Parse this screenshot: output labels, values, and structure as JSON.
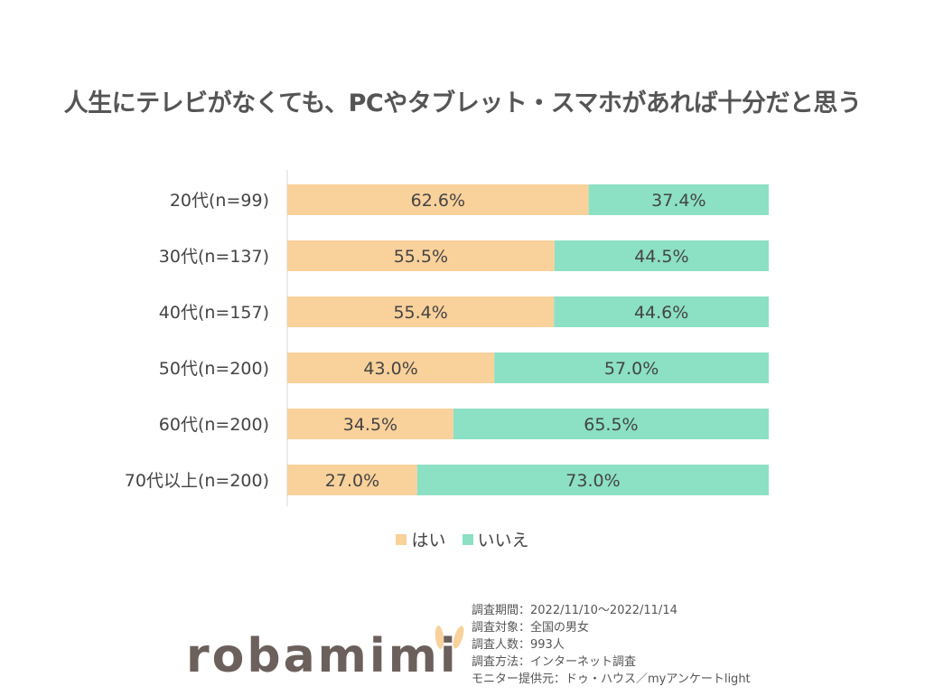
{
  "chart_data": {
    "type": "bar",
    "stacked": true,
    "orientation": "horizontal",
    "title": "人生にテレビがなくても、PCやタブレット・スマホがあれば十分だと思う",
    "categories": [
      "20代(n=99)",
      "30代(n=137)",
      "40代(n=157)",
      "50代(n=200)",
      "60代(n=200)",
      "70代以上(n=200)"
    ],
    "series": [
      {
        "name": "はい",
        "color": "#f9d19b",
        "values": [
          62.6,
          55.5,
          55.4,
          43.0,
          34.5,
          27.0
        ]
      },
      {
        "name": "いいえ",
        "color": "#8ce0c3",
        "values": [
          37.4,
          44.5,
          44.6,
          57.0,
          65.5,
          73.0
        ]
      }
    ],
    "xlim": [
      0,
      100
    ],
    "legend": "bottom",
    "grid": false
  },
  "notes": [
    "調査期間：2022/11/10～2022/11/14",
    "調査対象：全国の男女",
    "調査人数：993人",
    "調査方法：インターネット調査",
    "モニター提供元：ドゥ・ハウス／myアンケートlight"
  ],
  "logo": "robamimi"
}
